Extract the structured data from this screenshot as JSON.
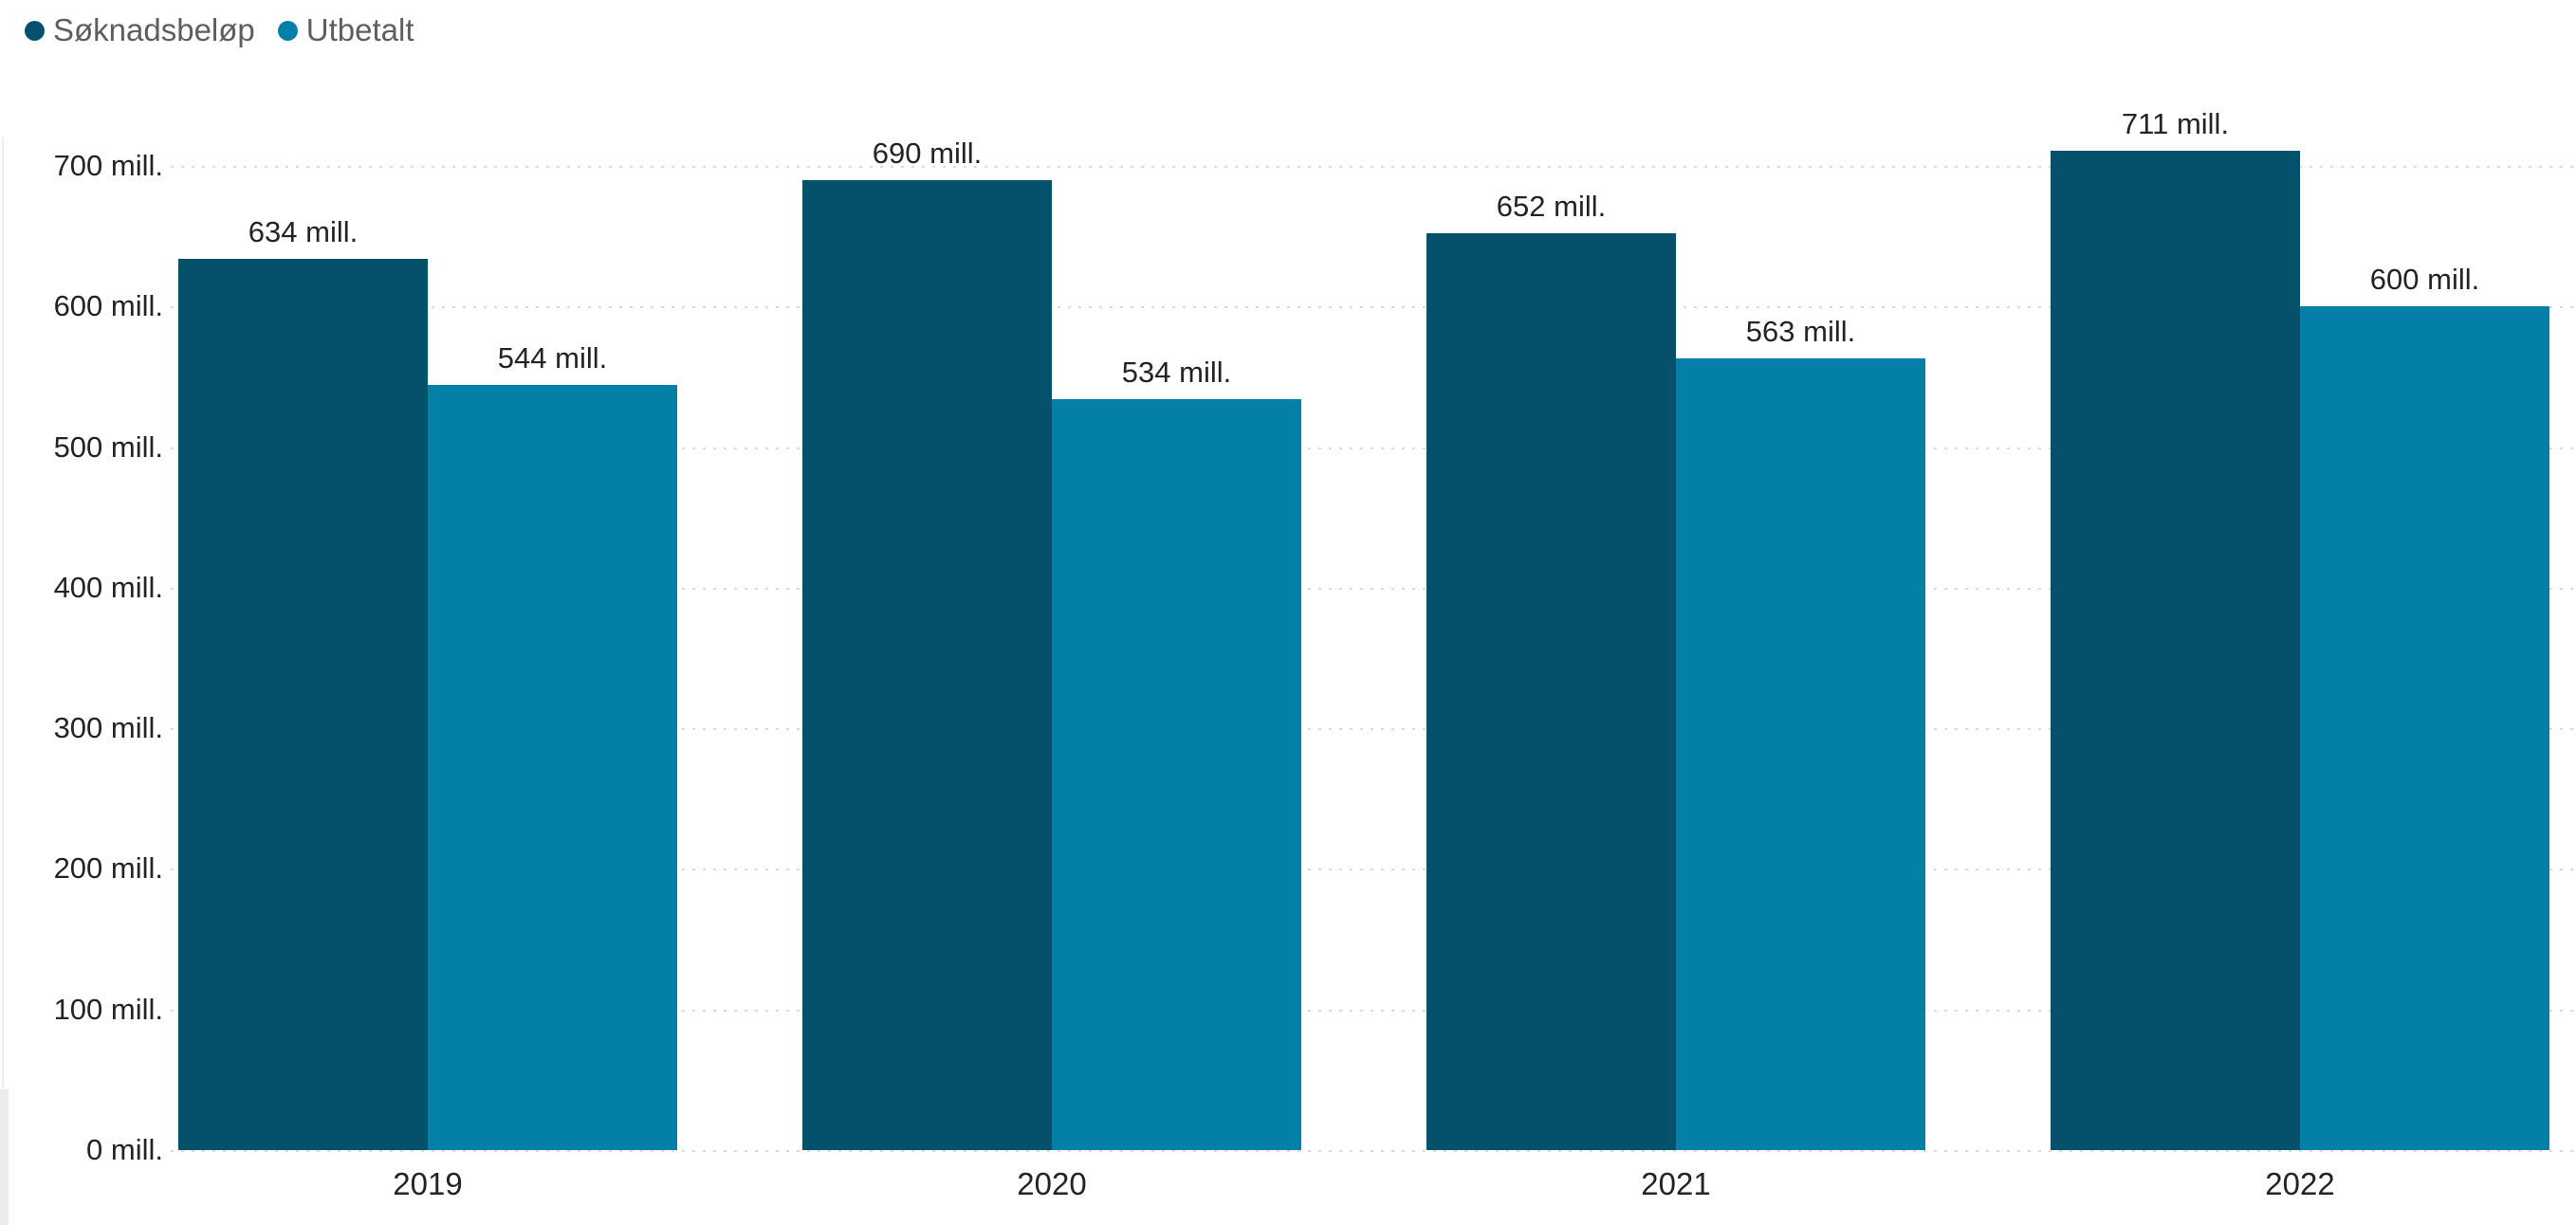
{
  "page": {
    "background": "#FFFFFF"
  },
  "legend": {
    "position": "top-left",
    "items": [
      {
        "label": "Søknadsbeløp",
        "color": "#05506A"
      },
      {
        "label": "Utbetalt",
        "color": "#0480A8"
      }
    ]
  },
  "chart_data": {
    "type": "bar",
    "title": "",
    "categories": [
      "2019",
      "2020",
      "2021",
      "2022"
    ],
    "series": [
      {
        "name": "Søknadsbeløp",
        "color": "#05506A",
        "values": [
          634,
          690,
          652,
          711
        ],
        "data_labels": [
          "634 mill.",
          "690 mill.",
          "652 mill.",
          "711 mill."
        ]
      },
      {
        "name": "Utbetalt",
        "color": "#0480A8",
        "values": [
          544,
          534,
          563,
          600
        ],
        "data_labels": [
          "544 mill.",
          "534 mill.",
          "563 mill.",
          "600 mill."
        ]
      }
    ],
    "y_axis": {
      "min": 0,
      "max": 700,
      "tick_step": 100,
      "ticks": [
        0,
        100,
        200,
        300,
        400,
        500,
        600,
        700
      ],
      "tick_labels": [
        "0 mill.",
        "100 mill.",
        "200 mill.",
        "300 mill.",
        "400 mill.",
        "500 mill.",
        "600 mill.",
        "700 mill."
      ],
      "unit": "mill."
    },
    "grid": "horizontal-dotted",
    "legend_position": "top-left",
    "ylim": [
      0,
      750
    ]
  },
  "colors": {
    "series_soknadsbelop": "#05506A",
    "series_utbetalt": "#0480A8",
    "grid_line": "#D9D9D9",
    "axis_label": "#252423",
    "data_label": "#252423",
    "legend_text": "#605E5C",
    "background": "#FFFFFF"
  }
}
